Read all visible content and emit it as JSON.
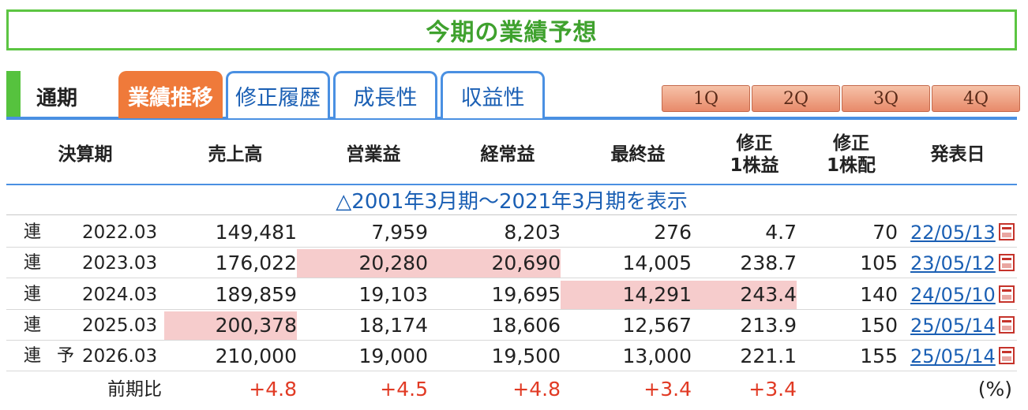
{
  "title": "今期の業績予想",
  "tabs": {
    "static_label": "通期",
    "items": [
      {
        "label": "業績推移",
        "active": true
      },
      {
        "label": "修正履歴",
        "active": false
      },
      {
        "label": "成長性",
        "active": false
      },
      {
        "label": "収益性",
        "active": false
      }
    ],
    "quarters": [
      "1Q",
      "2Q",
      "3Q",
      "4Q"
    ]
  },
  "columns": [
    "決算期",
    "売上高",
    "営業益",
    "経常益",
    "最終益",
    "修正\n1株益",
    "修正\n1株配",
    "発表日"
  ],
  "history_link": "△2001年3月期～2021年3月期を表示",
  "rows": [
    {
      "kind": "連",
      "forecast": "",
      "period": "2022.03",
      "sales": "149,481",
      "op": "7,959",
      "ord": "8,203",
      "net": "276",
      "eps": "4.7",
      "dps": "70",
      "date": "22/05/13"
    },
    {
      "kind": "連",
      "forecast": "",
      "period": "2023.03",
      "sales": "176,022",
      "op": "20,280",
      "ord": "20,690",
      "net": "14,005",
      "eps": "238.7",
      "dps": "105",
      "date": "23/05/12"
    },
    {
      "kind": "連",
      "forecast": "",
      "period": "2024.03",
      "sales": "189,859",
      "op": "19,103",
      "ord": "19,695",
      "net": "14,291",
      "eps": "243.4",
      "dps": "140",
      "date": "24/05/10"
    },
    {
      "kind": "連",
      "forecast": "",
      "period": "2025.03",
      "sales": "200,378",
      "op": "18,174",
      "ord": "18,606",
      "net": "12,567",
      "eps": "213.9",
      "dps": "150",
      "date": "25/05/14"
    },
    {
      "kind": "連",
      "forecast": "予",
      "period": "2026.03",
      "sales": "210,000",
      "op": "19,000",
      "ord": "19,500",
      "net": "13,000",
      "eps": "221.1",
      "dps": "155",
      "date": "25/05/14"
    }
  ],
  "highlights": [
    [
      1,
      "op"
    ],
    [
      1,
      "ord"
    ],
    [
      2,
      "net"
    ],
    [
      2,
      "eps"
    ],
    [
      3,
      "sales"
    ]
  ],
  "comparison": {
    "label": "前期比",
    "sales": "+4.8",
    "op": "+4.5",
    "ord": "+4.8",
    "net": "+3.4",
    "eps": "+3.4",
    "unit": "(%)"
  },
  "colors": {
    "accent_green": "#5cc542",
    "tab_active": "#ef7a3a",
    "link_blue": "#1a5fb4",
    "highlight": "#f6cccc",
    "positive_red": "#e13a24"
  },
  "icons": {
    "report": "pdf-icon"
  }
}
